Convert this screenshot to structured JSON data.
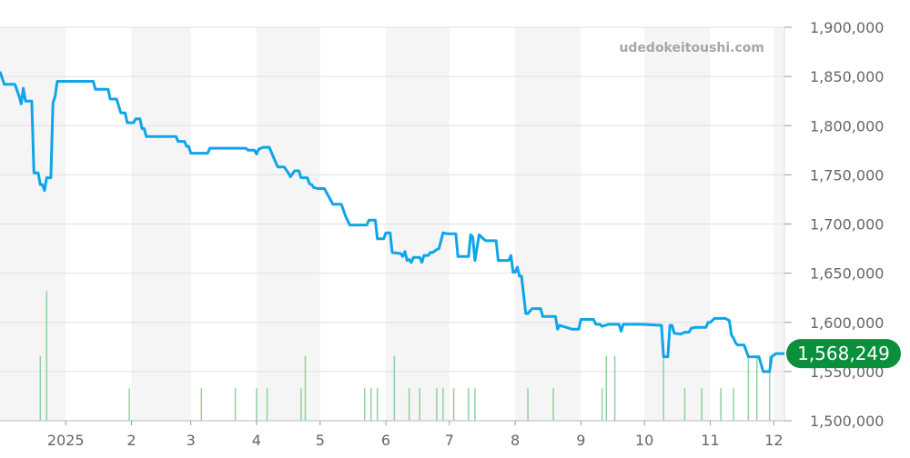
{
  "watermark": "udedokeitoushi.com",
  "chart_data": {
    "type": "line",
    "title": "",
    "xlabel": "",
    "ylabel": "",
    "ylim": [
      1500000,
      1900000
    ],
    "xlim": [
      "2024-12-01",
      "2025-12-06"
    ],
    "grid": true,
    "y_ticks": [
      {
        "value": 1500000,
        "label": "1,500,000"
      },
      {
        "value": 1550000,
        "label": "1,550,000"
      },
      {
        "value": 1600000,
        "label": "1,600,000"
      },
      {
        "value": 1650000,
        "label": "1,650,000"
      },
      {
        "value": 1700000,
        "label": "1,700,000"
      },
      {
        "value": 1750000,
        "label": "1,750,000"
      },
      {
        "value": 1800000,
        "label": "1,800,000"
      },
      {
        "value": 1850000,
        "label": "1,850,000"
      },
      {
        "value": 1900000,
        "label": "1,900,000"
      }
    ],
    "x_ticks": [
      {
        "date": "2025-01-01",
        "label": "2025"
      },
      {
        "date": "2025-02-01",
        "label": "2"
      },
      {
        "date": "2025-03-01",
        "label": "3"
      },
      {
        "date": "2025-04-01",
        "label": "4"
      },
      {
        "date": "2025-05-01",
        "label": "5"
      },
      {
        "date": "2025-06-01",
        "label": "6"
      },
      {
        "date": "2025-07-01",
        "label": "7"
      },
      {
        "date": "2025-08-01",
        "label": "8"
      },
      {
        "date": "2025-09-01",
        "label": "9"
      },
      {
        "date": "2025-10-01",
        "label": "10"
      },
      {
        "date": "2025-11-01",
        "label": "11"
      },
      {
        "date": "2025-12-01",
        "label": "12"
      }
    ],
    "shaded_months": [
      [
        "2024-12-01",
        "2025-01-01"
      ],
      [
        "2025-02-01",
        "2025-03-01"
      ],
      [
        "2025-04-01",
        "2025-05-01"
      ],
      [
        "2025-06-01",
        "2025-07-01"
      ],
      [
        "2025-08-01",
        "2025-09-01"
      ],
      [
        "2025-10-01",
        "2025-11-01"
      ],
      [
        "2025-12-01",
        "2025-12-06"
      ]
    ],
    "colors": {
      "line": "#0ea5e9",
      "volume": "#8fd19e",
      "badge": "#0a8f3c",
      "shade": "#f5f5f5"
    },
    "current_value": {
      "value": 1568249,
      "label": "1,568,249"
    },
    "series": [
      {
        "points": [
          [
            "2024-12-01",
            1855000
          ],
          [
            "2024-12-03",
            1842000
          ],
          [
            "2024-12-08",
            1842000
          ],
          [
            "2024-12-10",
            1830000
          ],
          [
            "2024-12-11",
            1822000
          ],
          [
            "2024-12-12",
            1838000
          ],
          [
            "2024-12-13",
            1825000
          ],
          [
            "2024-12-16",
            1825000
          ],
          [
            "2024-12-17",
            1752000
          ],
          [
            "2024-12-19",
            1752000
          ],
          [
            "2024-12-20",
            1740000
          ],
          [
            "2024-12-21",
            1740000
          ],
          [
            "2024-12-22",
            1734000
          ],
          [
            "2024-12-23",
            1747000
          ],
          [
            "2024-12-25",
            1747000
          ],
          [
            "2024-12-26",
            1823000
          ],
          [
            "2024-12-27",
            1830000
          ],
          [
            "2024-12-28",
            1845000
          ],
          [
            "2025-01-14",
            1845000
          ],
          [
            "2025-01-15",
            1837000
          ],
          [
            "2025-01-21",
            1837000
          ],
          [
            "2025-01-22",
            1827000
          ],
          [
            "2025-01-25",
            1827000
          ],
          [
            "2025-01-27",
            1813000
          ],
          [
            "2025-01-29",
            1813000
          ],
          [
            "2025-01-30",
            1803000
          ],
          [
            "2025-02-02",
            1803000
          ],
          [
            "2025-02-03",
            1807000
          ],
          [
            "2025-02-05",
            1807000
          ],
          [
            "2025-02-06",
            1797000
          ],
          [
            "2025-02-07",
            1797000
          ],
          [
            "2025-02-08",
            1789000
          ],
          [
            "2025-02-22",
            1789000
          ],
          [
            "2025-02-23",
            1784000
          ],
          [
            "2025-02-26",
            1784000
          ],
          [
            "2025-02-27",
            1779000
          ],
          [
            "2025-02-28",
            1779000
          ],
          [
            "2025-03-01",
            1772000
          ],
          [
            "2025-03-09",
            1772000
          ],
          [
            "2025-03-10",
            1777000
          ],
          [
            "2025-03-27",
            1777000
          ],
          [
            "2025-03-28",
            1775000
          ],
          [
            "2025-03-31",
            1775000
          ],
          [
            "2025-04-01",
            1771000
          ],
          [
            "2025-04-02",
            1776000
          ],
          [
            "2025-04-04",
            1778000
          ],
          [
            "2025-04-07",
            1778000
          ],
          [
            "2025-04-09",
            1768000
          ],
          [
            "2025-04-11",
            1758000
          ],
          [
            "2025-04-14",
            1758000
          ],
          [
            "2025-04-16",
            1752000
          ],
          [
            "2025-04-17",
            1748000
          ],
          [
            "2025-04-19",
            1754000
          ],
          [
            "2025-04-21",
            1754000
          ],
          [
            "2025-04-22",
            1747000
          ],
          [
            "2025-04-25",
            1747000
          ],
          [
            "2025-04-26",
            1741000
          ],
          [
            "2025-04-27",
            1740000
          ],
          [
            "2025-04-28",
            1737000
          ],
          [
            "2025-04-30",
            1736000
          ],
          [
            "2025-05-03",
            1736000
          ],
          [
            "2025-05-04",
            1732000
          ],
          [
            "2025-05-07",
            1720000
          ],
          [
            "2025-05-11",
            1720000
          ],
          [
            "2025-05-13",
            1708000
          ],
          [
            "2025-05-15",
            1699000
          ],
          [
            "2025-05-23",
            1699000
          ],
          [
            "2025-05-24",
            1704000
          ],
          [
            "2025-05-27",
            1704000
          ],
          [
            "2025-05-28",
            1685000
          ],
          [
            "2025-05-31",
            1685000
          ],
          [
            "2025-06-01",
            1691000
          ],
          [
            "2025-06-03",
            1691000
          ],
          [
            "2025-06-04",
            1671000
          ],
          [
            "2025-06-08",
            1670000
          ],
          [
            "2025-06-09",
            1667000
          ],
          [
            "2025-06-10",
            1672000
          ],
          [
            "2025-06-11",
            1663000
          ],
          [
            "2025-06-12",
            1664000
          ],
          [
            "2025-06-13",
            1661000
          ],
          [
            "2025-06-14",
            1666000
          ],
          [
            "2025-06-17",
            1666000
          ],
          [
            "2025-06-18",
            1661000
          ],
          [
            "2025-06-19",
            1668000
          ],
          [
            "2025-06-21",
            1668000
          ],
          [
            "2025-06-22",
            1671000
          ],
          [
            "2025-06-23",
            1671000
          ],
          [
            "2025-06-25",
            1674000
          ],
          [
            "2025-06-26",
            1675000
          ],
          [
            "2025-06-28",
            1691000
          ],
          [
            "2025-06-30",
            1690000
          ],
          [
            "2025-07-04",
            1690000
          ],
          [
            "2025-07-05",
            1667000
          ],
          [
            "2025-07-10",
            1667000
          ],
          [
            "2025-07-11",
            1689000
          ],
          [
            "2025-07-12",
            1687000
          ],
          [
            "2025-07-13",
            1663000
          ],
          [
            "2025-07-15",
            1689000
          ],
          [
            "2025-07-18",
            1683000
          ],
          [
            "2025-07-23",
            1683000
          ],
          [
            "2025-07-24",
            1663000
          ],
          [
            "2025-07-29",
            1663000
          ],
          [
            "2025-07-30",
            1668000
          ],
          [
            "2025-07-31",
            1651000
          ],
          [
            "2025-08-01",
            1651000
          ],
          [
            "2025-08-02",
            1656000
          ],
          [
            "2025-08-03",
            1647000
          ],
          [
            "2025-08-04",
            1647000
          ],
          [
            "2025-08-06",
            1609000
          ],
          [
            "2025-08-07",
            1609000
          ],
          [
            "2025-08-09",
            1614000
          ],
          [
            "2025-08-13",
            1614000
          ],
          [
            "2025-08-14",
            1606000
          ],
          [
            "2025-08-20",
            1606000
          ],
          [
            "2025-08-21",
            1593000
          ],
          [
            "2025-08-22",
            1597000
          ],
          [
            "2025-08-25",
            1595000
          ],
          [
            "2025-08-28",
            1593000
          ],
          [
            "2025-08-31",
            1593000
          ],
          [
            "2025-09-01",
            1603000
          ],
          [
            "2025-09-07",
            1603000
          ],
          [
            "2025-09-08",
            1598000
          ],
          [
            "2025-09-10",
            1598000
          ],
          [
            "2025-09-11",
            1596000
          ],
          [
            "2025-09-14",
            1598000
          ],
          [
            "2025-09-19",
            1598000
          ],
          [
            "2025-09-20",
            1591000
          ],
          [
            "2025-09-21",
            1598000
          ],
          [
            "2025-09-30",
            1598000
          ],
          [
            "2025-10-09",
            1597000
          ],
          [
            "2025-10-10",
            1565000
          ],
          [
            "2025-10-12",
            1565000
          ],
          [
            "2025-10-13",
            1597000
          ],
          [
            "2025-10-14",
            1597000
          ],
          [
            "2025-10-15",
            1589000
          ],
          [
            "2025-10-18",
            1588000
          ],
          [
            "2025-10-20",
            1590000
          ],
          [
            "2025-10-22",
            1590000
          ],
          [
            "2025-10-23",
            1594000
          ],
          [
            "2025-10-25",
            1595000
          ],
          [
            "2025-10-30",
            1595000
          ],
          [
            "2025-10-31",
            1600000
          ],
          [
            "2025-11-01",
            1600000
          ],
          [
            "2025-11-03",
            1604000
          ],
          [
            "2025-11-08",
            1604000
          ],
          [
            "2025-11-10",
            1602000
          ],
          [
            "2025-11-11",
            1587000
          ],
          [
            "2025-11-12",
            1584000
          ],
          [
            "2025-11-13",
            1579000
          ],
          [
            "2025-11-14",
            1577000
          ],
          [
            "2025-11-17",
            1577000
          ],
          [
            "2025-11-18",
            1571000
          ],
          [
            "2025-11-19",
            1565000
          ],
          [
            "2025-11-24",
            1565000
          ],
          [
            "2025-11-26",
            1550000
          ],
          [
            "2025-11-29",
            1550000
          ],
          [
            "2025-11-30",
            1565000
          ],
          [
            "2025-12-02",
            1568249
          ],
          [
            "2025-12-06",
            1568249
          ]
        ]
      }
    ],
    "volume": [
      [
        "2024-12-20",
        2
      ],
      [
        "2024-12-23",
        4
      ],
      [
        "2025-01-31",
        1
      ],
      [
        "2025-03-06",
        1
      ],
      [
        "2025-03-22",
        1
      ],
      [
        "2025-04-01",
        1
      ],
      [
        "2025-04-06",
        1
      ],
      [
        "2025-04-22",
        1
      ],
      [
        "2025-04-24",
        2
      ],
      [
        "2025-05-22",
        1
      ],
      [
        "2025-05-25",
        1
      ],
      [
        "2025-05-28",
        1
      ],
      [
        "2025-06-05",
        2
      ],
      [
        "2025-06-12",
        1
      ],
      [
        "2025-06-17",
        1
      ],
      [
        "2025-06-25",
        1
      ],
      [
        "2025-06-28",
        1
      ],
      [
        "2025-07-03",
        1
      ],
      [
        "2025-07-10",
        1
      ],
      [
        "2025-07-13",
        1
      ],
      [
        "2025-08-07",
        1
      ],
      [
        "2025-08-19",
        1
      ],
      [
        "2025-09-11",
        1
      ],
      [
        "2025-09-13",
        2
      ],
      [
        "2025-09-17",
        2
      ],
      [
        "2025-10-10",
        2
      ],
      [
        "2025-10-20",
        1
      ],
      [
        "2025-10-28",
        1
      ],
      [
        "2025-11-06",
        1
      ],
      [
        "2025-11-12",
        1
      ],
      [
        "2025-11-19",
        2
      ],
      [
        "2025-11-23",
        2
      ],
      [
        "2025-11-29",
        2
      ]
    ]
  }
}
